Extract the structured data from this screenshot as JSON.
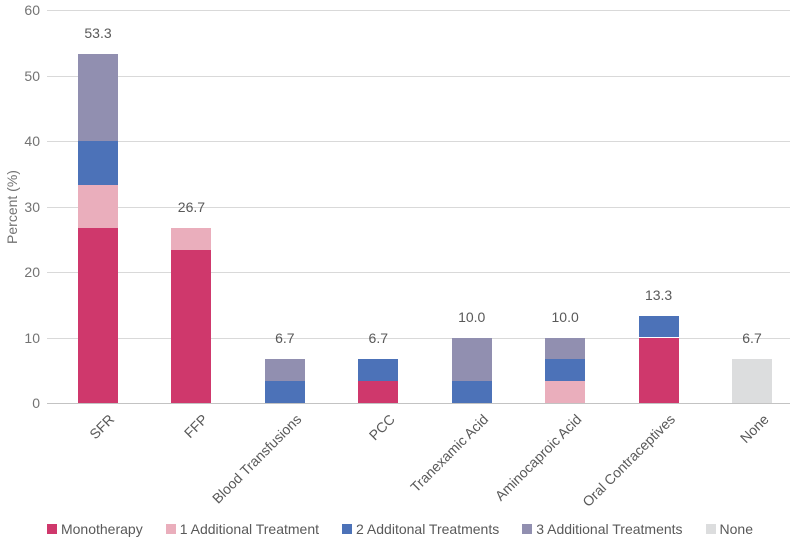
{
  "chart_data": {
    "type": "bar",
    "stacked": true,
    "title": "",
    "xlabel": "",
    "ylabel": "Percent (%)",
    "ylim": [
      0,
      60
    ],
    "yticks": [
      0,
      10,
      20,
      30,
      40,
      50,
      60
    ],
    "grid": true,
    "legend_position": "bottom",
    "categories": [
      "SFR",
      "FFP",
      "Blood Transfusions",
      "PCC",
      "Tranexamic Acid",
      "Aminocaproic Acid",
      "Oral Contraceptives",
      "None"
    ],
    "series": [
      {
        "name": "Monotherapy",
        "color": "#cf386c",
        "values": [
          26.67,
          23.33,
          0,
          3.33,
          0,
          0,
          10.0,
          0
        ]
      },
      {
        "name": "1 Additional Treatment",
        "color": "#eaaebc",
        "values": [
          6.67,
          3.33,
          0,
          0,
          0,
          3.33,
          0,
          0
        ]
      },
      {
        "name": "2 Additonal Treatments",
        "color": "#4c72b8",
        "values": [
          6.67,
          0,
          3.33,
          3.33,
          3.33,
          3.33,
          3.33,
          0
        ]
      },
      {
        "name": "3 Additional Treatments",
        "color": "#918fb0",
        "values": [
          13.33,
          0,
          3.33,
          0,
          6.67,
          3.33,
          0,
          0
        ]
      },
      {
        "name": "None",
        "color": "#dcddde",
        "values": [
          0,
          0,
          0,
          0,
          0,
          0,
          0,
          6.67
        ]
      }
    ],
    "total_labels": [
      "53.3",
      "26.7",
      "6.7",
      "6.7",
      "10.0",
      "10.0",
      "13.3",
      "6.7"
    ],
    "colors": {
      "gridline": "#d9d9d9",
      "axis_line": "#c3c3c3",
      "tick_text": "#737373",
      "label_text": "#595959"
    }
  }
}
